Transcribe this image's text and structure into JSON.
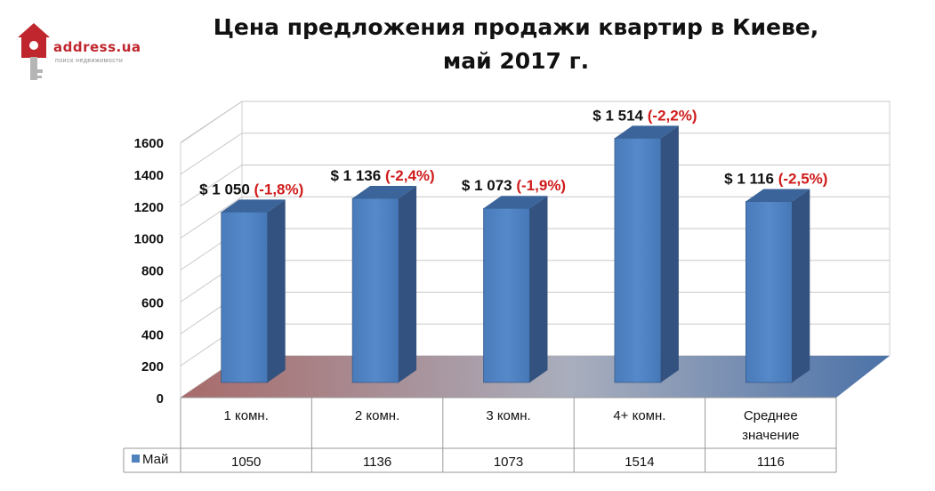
{
  "logo": {
    "text": "address.ua",
    "subtext": "поиск недвижимости"
  },
  "title_line1": "Цена предложения продажи квартир в Киеве,",
  "title_line2": "май 2017 г.",
  "colors": {
    "bar": "#4f81bd",
    "bar_top": "#3a649a",
    "bar_side": "#33527f",
    "change": "#d01b1b",
    "logo": "#c0262d"
  },
  "chart_data": {
    "type": "bar",
    "categories": [
      "1 комн.",
      "2 комн.",
      "3 комн.",
      "4+ комн.",
      "Среднее значение"
    ],
    "series": [
      {
        "name": "Май",
        "values": [
          1050,
          1136,
          1073,
          1514,
          1116
        ]
      }
    ],
    "data_labels": [
      "$ 1 050",
      "$  1 136",
      "$  1 073",
      "$ 1 514",
      "$ 1 116"
    ],
    "change_labels": [
      "(-1,8%)",
      "(-2,4%)",
      "(-1,9%)",
      "(-2,2%)",
      "(-2,5%)"
    ],
    "table_values": [
      "1050",
      "1136",
      "1073",
      "1514",
      "1116"
    ],
    "y_ticks": [
      0,
      200,
      400,
      600,
      800,
      1000,
      1200,
      1400,
      1600
    ],
    "ylim": [
      0,
      1600
    ],
    "grid": true,
    "legend": "data table"
  }
}
